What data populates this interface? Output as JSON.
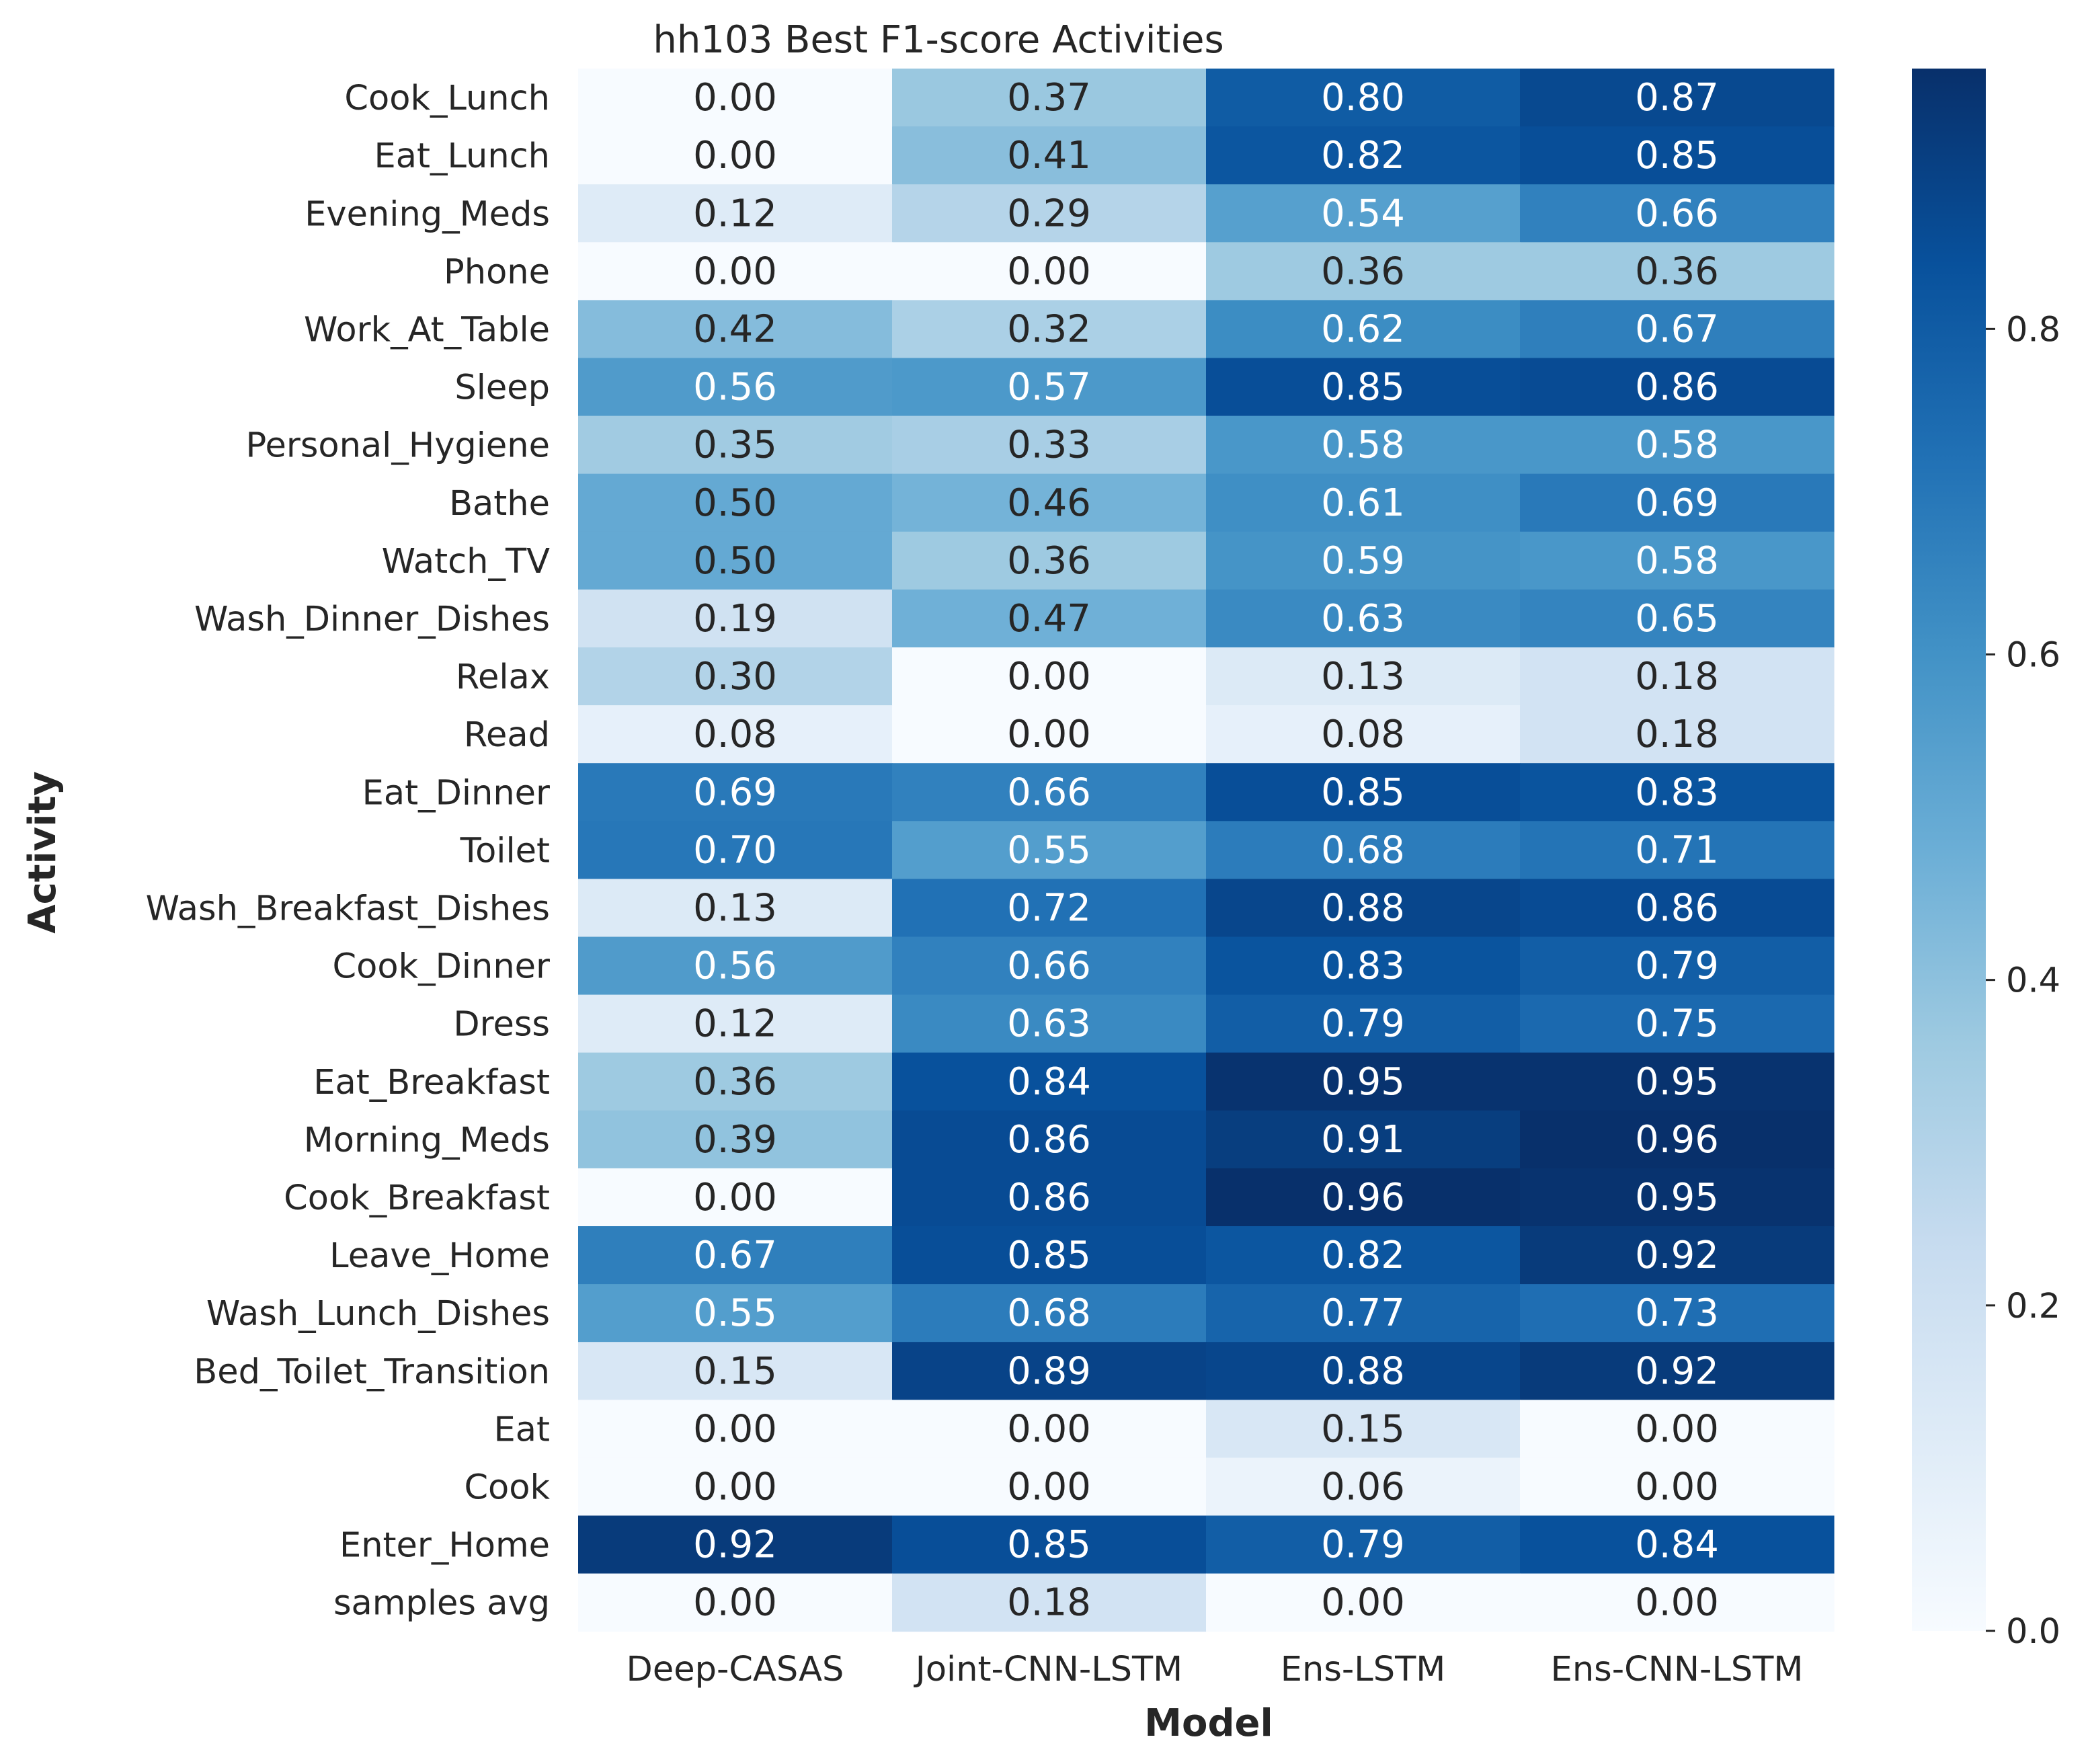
{
  "chart_data": {
    "type": "heatmap",
    "title": "hh103 Best F1-score Activities",
    "xlabel": "Model",
    "ylabel": "Activity",
    "columns": [
      "Deep-CASAS",
      "Joint-CNN-LSTM",
      "Ens-LSTM",
      "Ens-CNN-LSTM"
    ],
    "rows": [
      "Cook_Lunch",
      "Eat_Lunch",
      "Evening_Meds",
      "Phone",
      "Work_At_Table",
      "Sleep",
      "Personal_Hygiene",
      "Bathe",
      "Watch_TV",
      "Wash_Dinner_Dishes",
      "Relax",
      "Read",
      "Eat_Dinner",
      "Toilet",
      "Wash_Breakfast_Dishes",
      "Cook_Dinner",
      "Dress",
      "Eat_Breakfast",
      "Morning_Meds",
      "Cook_Breakfast",
      "Leave_Home",
      "Wash_Lunch_Dishes",
      "Bed_Toilet_Transition",
      "Eat",
      "Cook",
      "Enter_Home",
      "samples avg"
    ],
    "values": [
      [
        0.0,
        0.37,
        0.8,
        0.87
      ],
      [
        0.0,
        0.41,
        0.82,
        0.85
      ],
      [
        0.12,
        0.29,
        0.54,
        0.66
      ],
      [
        0.0,
        0.0,
        0.36,
        0.36
      ],
      [
        0.42,
        0.32,
        0.62,
        0.67
      ],
      [
        0.56,
        0.57,
        0.85,
        0.86
      ],
      [
        0.35,
        0.33,
        0.58,
        0.58
      ],
      [
        0.5,
        0.46,
        0.61,
        0.69
      ],
      [
        0.5,
        0.36,
        0.59,
        0.58
      ],
      [
        0.19,
        0.47,
        0.63,
        0.65
      ],
      [
        0.3,
        0.0,
        0.13,
        0.18
      ],
      [
        0.08,
        0.0,
        0.08,
        0.18
      ],
      [
        0.69,
        0.66,
        0.85,
        0.83
      ],
      [
        0.7,
        0.55,
        0.68,
        0.71
      ],
      [
        0.13,
        0.72,
        0.88,
        0.86
      ],
      [
        0.56,
        0.66,
        0.83,
        0.79
      ],
      [
        0.12,
        0.63,
        0.79,
        0.75
      ],
      [
        0.36,
        0.84,
        0.95,
        0.95
      ],
      [
        0.39,
        0.86,
        0.91,
        0.96
      ],
      [
        0.0,
        0.86,
        0.96,
        0.95
      ],
      [
        0.67,
        0.85,
        0.82,
        0.92
      ],
      [
        0.55,
        0.68,
        0.77,
        0.73
      ],
      [
        0.15,
        0.89,
        0.88,
        0.92
      ],
      [
        0.0,
        0.0,
        0.15,
        0.0
      ],
      [
        0.0,
        0.0,
        0.06,
        0.0
      ],
      [
        0.92,
        0.85,
        0.79,
        0.84
      ],
      [
        0.0,
        0.18,
        0.0,
        0.0
      ]
    ],
    "colormap": "Blues",
    "color_range": [
      0.0,
      0.96
    ],
    "colorbar_ticks": [
      "0.0",
      "0.2",
      "0.4",
      "0.6",
      "0.8"
    ],
    "value_format": "2 decimals",
    "grid": false,
    "legend": "colorbar-right"
  }
}
